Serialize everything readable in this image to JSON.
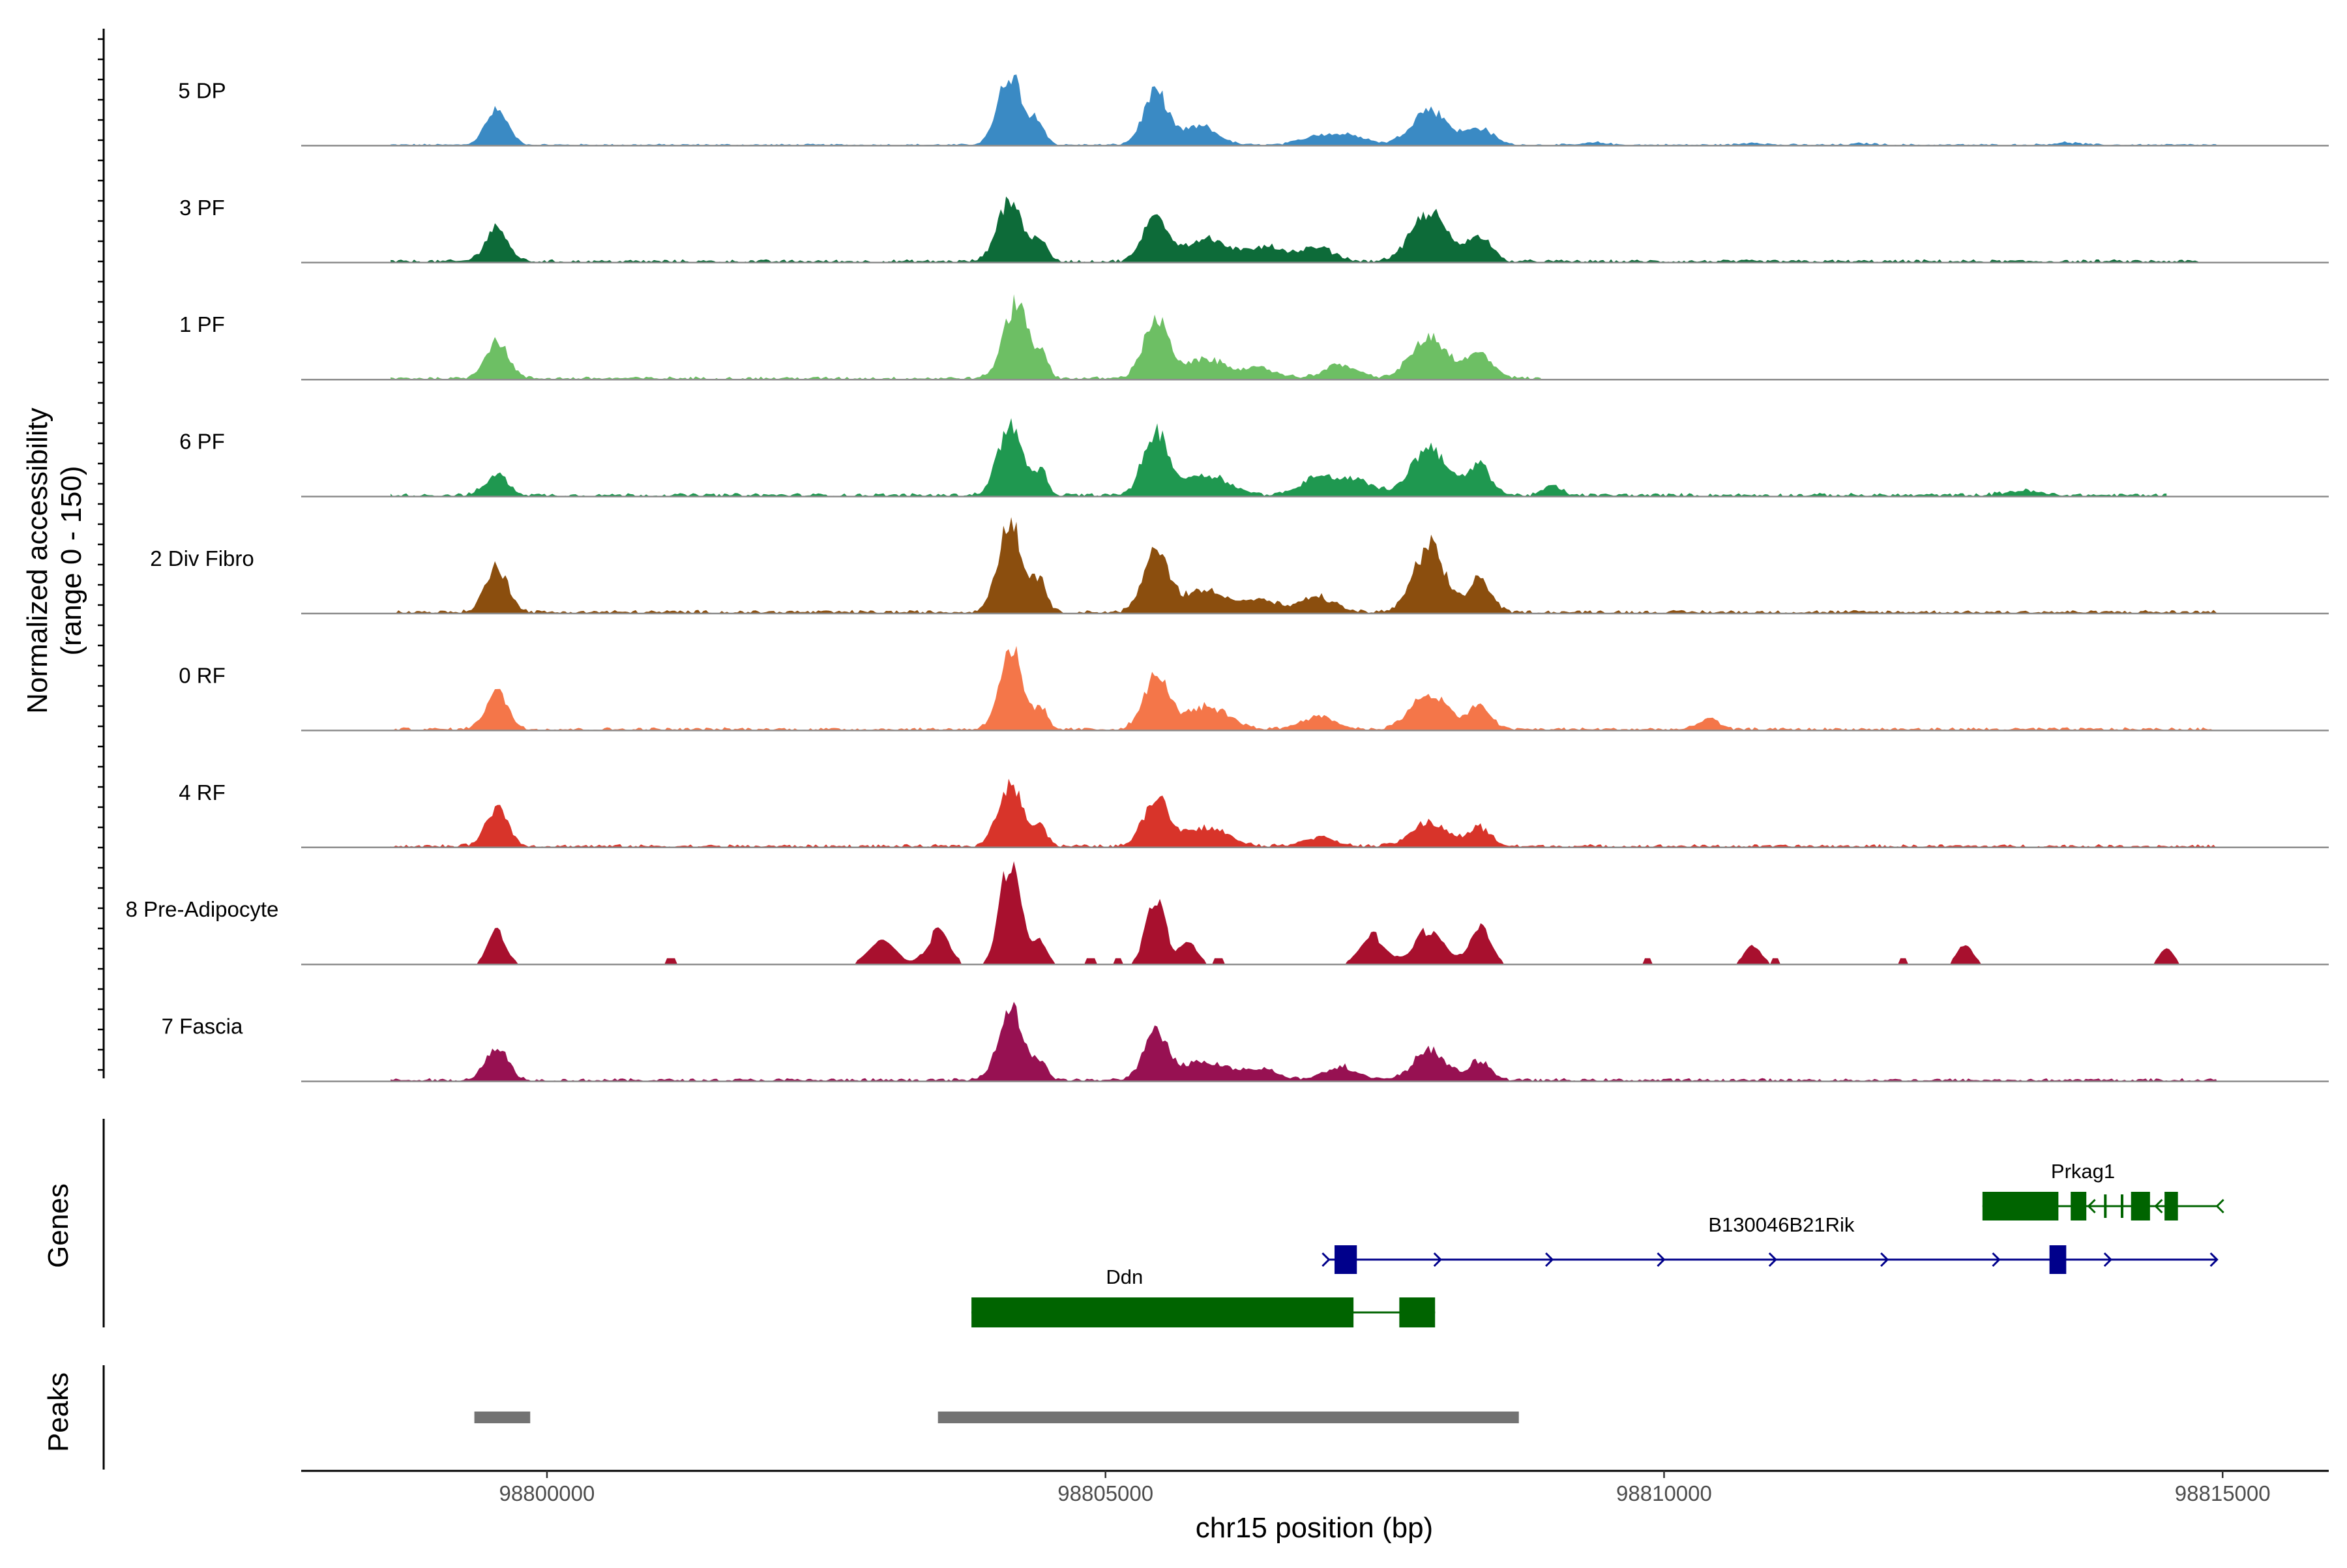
{
  "chart_data": {
    "type": "area",
    "title": "",
    "xlabel": "chr15 position (bp)",
    "ylabel": "Normalized accessibility\n(range 0 - 150)",
    "ylabel_lines": [
      "Normalized accessibility",
      "(range 0 - 150)"
    ],
    "xlim": [
      98797800,
      98815950
    ],
    "ylim": [
      0,
      150
    ],
    "x_ticks": [
      98800000,
      98805000,
      98810000,
      98815000
    ],
    "x_tick_labels": [
      "98800000",
      "98805000",
      "98810000",
      "98815000"
    ],
    "tracks": [
      {
        "name": "5 DP",
        "color": "#3a8ac4",
        "peaks": [
          [
            98799550,
            0.46,
            100
          ],
          [
            98804150,
            0.95,
            110
          ],
          [
            98804400,
            0.3,
            60
          ],
          [
            98805450,
            0.7,
            110
          ],
          [
            98805850,
            0.25,
            150
          ],
          [
            98806900,
            0.12,
            150
          ],
          [
            98807200,
            0.12,
            150
          ],
          [
            98807900,
            0.48,
            160
          ],
          [
            98808350,
            0.22,
            120
          ]
        ],
        "noise": 0.025,
        "start": 98798600,
        "end": 98814950,
        "extra": [
          [
            98809400,
            0.03,
            100
          ],
          [
            98810800,
            0.03,
            100
          ],
          [
            98811800,
            0.02,
            100
          ],
          [
            98813600,
            0.03,
            120
          ]
        ]
      },
      {
        "name": "3 PF",
        "color": "#0d6b39",
        "peaks": [
          [
            98799550,
            0.46,
            100
          ],
          [
            98804150,
            0.85,
            110
          ],
          [
            98804420,
            0.28,
            60
          ],
          [
            98805450,
            0.6,
            110
          ],
          [
            98805900,
            0.3,
            200
          ],
          [
            98806450,
            0.2,
            150
          ],
          [
            98806900,
            0.18,
            150
          ],
          [
            98807900,
            0.65,
            160
          ],
          [
            98808350,
            0.35,
            100
          ]
        ],
        "noise": 0.04,
        "start": 98798600,
        "end": 98814800,
        "extra": []
      },
      {
        "name": "1 PF",
        "color": "#6dbf64",
        "peaks": [
          [
            98799550,
            0.5,
            100
          ],
          [
            98804200,
            1.0,
            110
          ],
          [
            98804430,
            0.25,
            60
          ],
          [
            98805450,
            0.78,
            110
          ],
          [
            98805900,
            0.25,
            200
          ],
          [
            98806400,
            0.12,
            150
          ],
          [
            98807100,
            0.18,
            150
          ],
          [
            98807900,
            0.55,
            160
          ],
          [
            98808350,
            0.32,
            120
          ]
        ],
        "noise": 0.04,
        "start": 98798600,
        "end": 98808900,
        "extra": []
      },
      {
        "name": "6 PF",
        "color": "#1f9850",
        "peaks": [
          [
            98799550,
            0.28,
            100
          ],
          [
            98804150,
            0.95,
            110
          ],
          [
            98804420,
            0.3,
            60
          ],
          [
            98805450,
            0.85,
            110
          ],
          [
            98805900,
            0.28,
            200
          ],
          [
            98806900,
            0.25,
            150
          ],
          [
            98807250,
            0.2,
            150
          ],
          [
            98807900,
            0.65,
            160
          ],
          [
            98808350,
            0.4,
            100
          ],
          [
            98809000,
            0.12,
            80
          ],
          [
            98813200,
            0.06,
            150
          ]
        ],
        "noise": 0.045,
        "start": 98798600,
        "end": 98814500,
        "extra": []
      },
      {
        "name": "2 Div Fibro",
        "color": "#8b4e0e",
        "peaks": [
          [
            98799550,
            0.6,
            100
          ],
          [
            98804150,
            1.2,
            110
          ],
          [
            98804420,
            0.4,
            60
          ],
          [
            98805450,
            0.82,
            110
          ],
          [
            98805900,
            0.3,
            200
          ],
          [
            98806400,
            0.15,
            150
          ],
          [
            98806900,
            0.2,
            150
          ],
          [
            98807900,
            0.88,
            140
          ],
          [
            98808350,
            0.45,
            100
          ]
        ],
        "noise": 0.045,
        "start": 98798600,
        "end": 98814950,
        "extra": []
      },
      {
        "name": "0 RF",
        "color": "#f47649",
        "peaks": [
          [
            98799550,
            0.5,
            100
          ],
          [
            98804150,
            1.1,
            100
          ],
          [
            98804420,
            0.28,
            60
          ],
          [
            98805450,
            0.7,
            110
          ],
          [
            98805900,
            0.3,
            200
          ],
          [
            98806900,
            0.18,
            150
          ],
          [
            98807900,
            0.48,
            160
          ],
          [
            98808350,
            0.3,
            100
          ],
          [
            98810400,
            0.15,
            80
          ]
        ],
        "noise": 0.04,
        "start": 98798600,
        "end": 98814950,
        "extra": []
      },
      {
        "name": "4 RF",
        "color": "#d8342a",
        "peaks": [
          [
            98799550,
            0.5,
            100
          ],
          [
            98804150,
            0.85,
            110
          ],
          [
            98804420,
            0.25,
            60
          ],
          [
            98805450,
            0.65,
            110
          ],
          [
            98805900,
            0.25,
            200
          ],
          [
            98806900,
            0.12,
            150
          ],
          [
            98807900,
            0.32,
            160
          ],
          [
            98808350,
            0.25,
            100
          ]
        ],
        "noise": 0.04,
        "start": 98798600,
        "end": 98814950,
        "extra": []
      },
      {
        "name": "8 Pre-Adipocyte",
        "color": "#a8102e",
        "peaks": [
          [
            98799550,
            0.5,
            80
          ],
          [
            98804150,
            1.45,
            90
          ],
          [
            98804420,
            0.3,
            60
          ],
          [
            98805450,
            0.9,
            90
          ],
          [
            98805750,
            0.3,
            80
          ],
          [
            98803000,
            0.3,
            120
          ],
          [
            98803500,
            0.45,
            100
          ],
          [
            98807400,
            0.4,
            120
          ],
          [
            98807900,
            0.5,
            120
          ],
          [
            98808350,
            0.5,
            100
          ],
          [
            98810800,
            0.25,
            80
          ],
          [
            98812700,
            0.3,
            70
          ],
          [
            98814500,
            0.22,
            60
          ]
        ],
        "noise": 0.0,
        "start": 98798600,
        "end": 98814950,
        "extra": [],
        "blocky": true
      },
      {
        "name": "7 Fascia",
        "color": "#971152",
        "peaks": [
          [
            98799550,
            0.45,
            100
          ],
          [
            98804150,
            0.95,
            110
          ],
          [
            98804420,
            0.25,
            60
          ],
          [
            98805450,
            0.62,
            110
          ],
          [
            98805900,
            0.25,
            200
          ],
          [
            98806400,
            0.15,
            150
          ],
          [
            98807100,
            0.18,
            150
          ],
          [
            98807900,
            0.42,
            140
          ],
          [
            98808350,
            0.25,
            100
          ]
        ],
        "noise": 0.04,
        "start": 98798600,
        "end": 98814950,
        "extra": []
      }
    ],
    "genes_label": "Genes",
    "genes": [
      {
        "name": "Prkag1",
        "color": "#006400",
        "strand": "-",
        "start": 98812850,
        "end": 98814950,
        "exons": [
          [
            98812850,
            98813530
          ],
          [
            98813640,
            98813780
          ],
          [
            98814180,
            98814350
          ],
          [
            98814480,
            98814600
          ]
        ],
        "small_ticks": [
          98813950,
          98814100
        ]
      },
      {
        "name": "B130046B21Rik",
        "color": "#00008b",
        "strand": "+",
        "start": 98807000,
        "end": 98814950,
        "exons": [
          [
            98807050,
            98807250
          ],
          [
            98813450,
            98813600
          ]
        ],
        "arrows": [
          98807000,
          98808000,
          98809000,
          98810000,
          98811000,
          98812000,
          98813000,
          98814000,
          98814950
        ]
      },
      {
        "name": "Ddn",
        "color": "#006400",
        "strand": "-",
        "start": 98803800,
        "end": 98807950,
        "exons": [
          [
            98803800,
            98807220
          ],
          [
            98807630,
            98807950
          ]
        ]
      }
    ],
    "peaks_label": "Peaks",
    "peak_regions": [
      [
        98799350,
        98799850
      ],
      [
        98803500,
        98808700
      ]
    ],
    "peak_color": "#737373"
  }
}
